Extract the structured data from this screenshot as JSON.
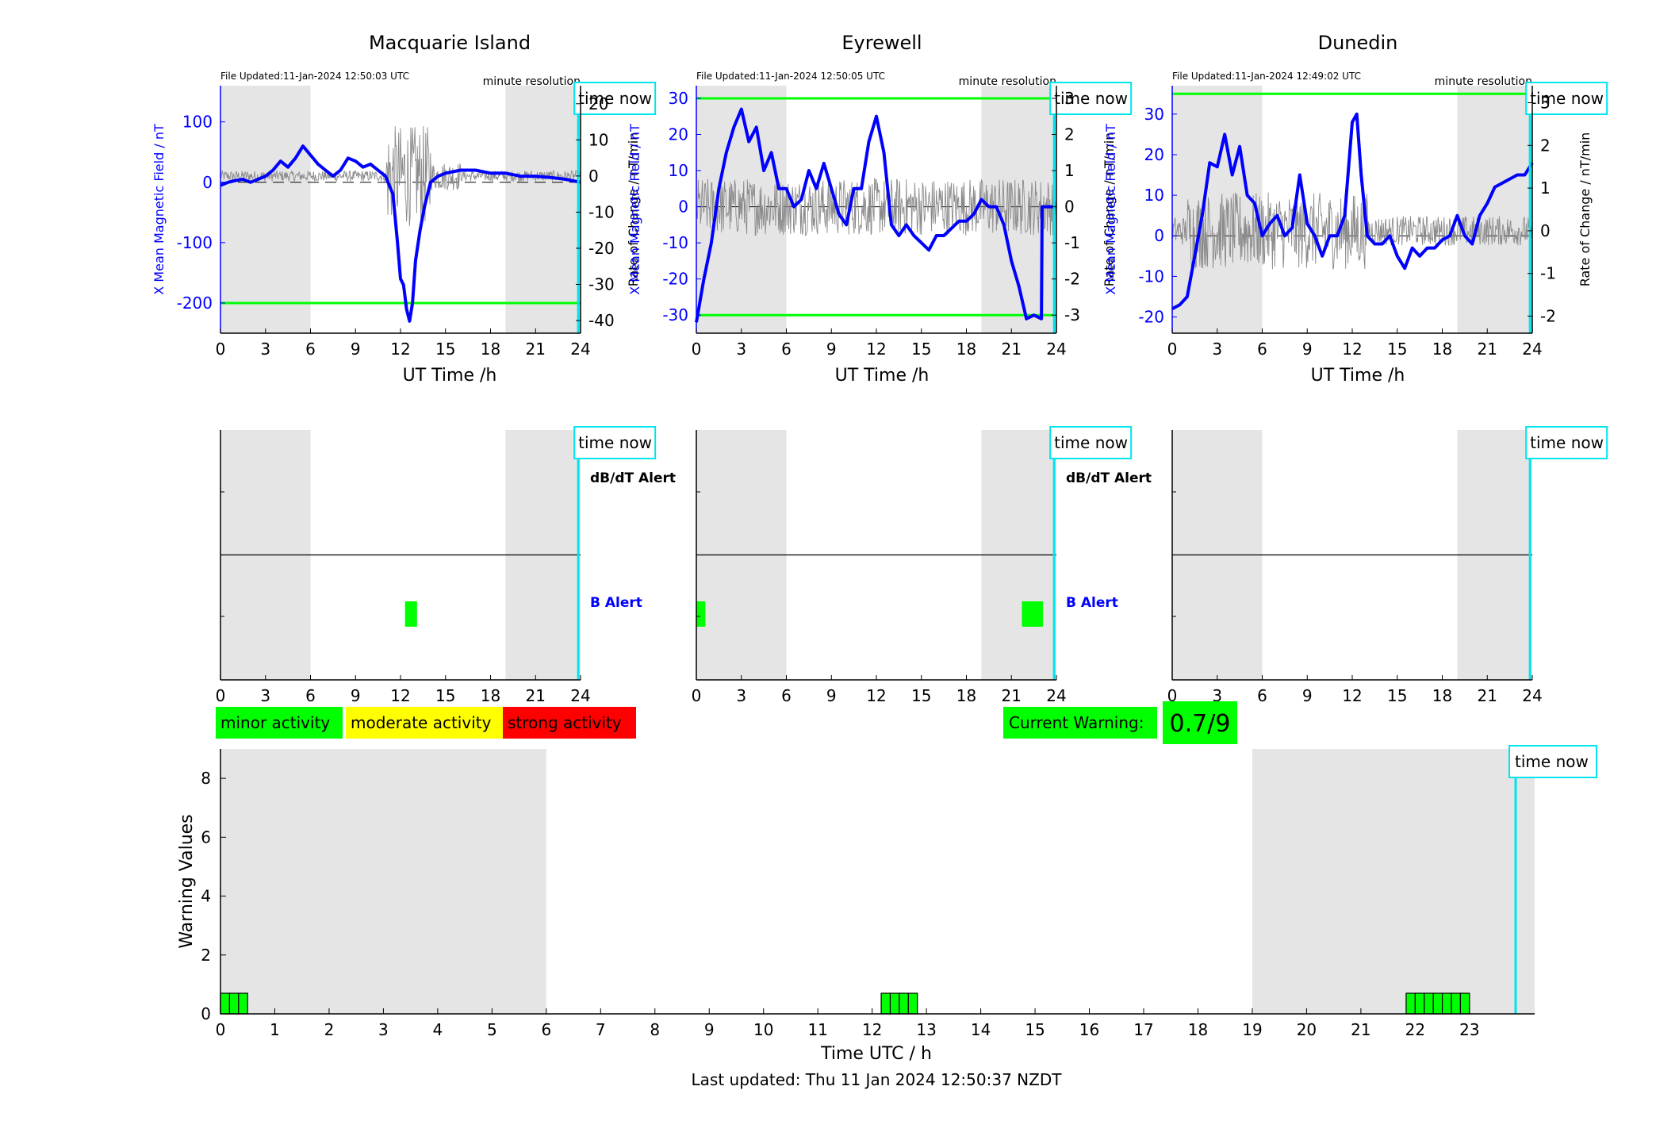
{
  "stations": [
    {
      "title": "Macquarie Island",
      "file_updated": "File Updated:11-Jan-2024 12:50:03 UTC",
      "resolution_label": "minute resolution",
      "time_now_label": "time now",
      "left_axis_label": "X Mean Magnetic Field / nT",
      "right_axis_label": "Rate of Change / nT/min",
      "dbdt_alert_label": "dB/dT Alert",
      "b_alert_label": "B Alert"
    },
    {
      "title": "Eyrewell",
      "file_updated": "File Updated:11-Jan-2024 12:50:05 UTC",
      "resolution_label": "minute resolution",
      "time_now_label": "time now",
      "left_axis_label": "X Mean Magnetic Field / nT",
      "right_axis_label": "Rate of Change / nT/min",
      "dbdt_alert_label": "dB/dT Alert",
      "b_alert_label": "B Alert"
    },
    {
      "title": "Dunedin",
      "file_updated": "File Updated:11-Jan-2024 12:49:02 UTC",
      "resolution_label": "minute resolution",
      "time_now_label": "time now",
      "left_axis_label": "X Mean Magnetic Field / nT",
      "right_axis_label": "Rate of Change / nT/min",
      "dbdt_alert_label": "",
      "b_alert_label": ""
    }
  ],
  "legend": {
    "minor": "minor activity",
    "moderate": "moderate activity",
    "strong": "strong activity"
  },
  "current_warning": {
    "label": "Current Warning:",
    "value": "0.7/9"
  },
  "bottom": {
    "ylabel": "Warning Values",
    "xlabel": "Time UTC / h",
    "time_now_label": "time now"
  },
  "last_updated": "Last updated: Thu 11 Jan 2024 12:50:37 NZDT",
  "colors": {
    "field": "#0000ff",
    "threshold": "#00ff00",
    "time_now": "#00e5ee",
    "night": "#e5e5e5",
    "minor": "#00ff00",
    "moderate": "#ffff00",
    "strong": "#ff0000"
  },
  "chart_data": [
    {
      "type": "line",
      "station": "Macquarie Island",
      "xlabel": "UT Time /h",
      "ylabel": "X Mean Magnetic Field / nT",
      "y2label": "Rate of Change / nT/min",
      "xlim": [
        0,
        24
      ],
      "xticks": [
        0,
        3,
        6,
        9,
        12,
        15,
        18,
        21,
        24
      ],
      "ylim": [
        -250,
        160
      ],
      "yticks": [
        -200,
        -100,
        0,
        100
      ],
      "y2lim": [
        -43.5,
        25
      ],
      "y2ticks": [
        -40,
        -30,
        -20,
        -10,
        0,
        10,
        20
      ],
      "night_shading": [
        [
          0,
          6
        ],
        [
          19,
          24
        ]
      ],
      "thresholds": [
        -200
      ],
      "time_now": 23.85,
      "series": [
        {
          "name": "X Mean Magnetic Field",
          "x": [
            0,
            0.5,
            1,
            1.5,
            2,
            2.5,
            3,
            3.5,
            4,
            4.5,
            5,
            5.5,
            6,
            6.5,
            7,
            7.5,
            8,
            8.5,
            9,
            9.5,
            10,
            10.5,
            11,
            11.5,
            11.8,
            12,
            12.2,
            12.4,
            12.6,
            12.8,
            13,
            13.3,
            13.6,
            14,
            14.5,
            15,
            16,
            17,
            18,
            19,
            20,
            21,
            22,
            23,
            24
          ],
          "y": [
            -5,
            0,
            3,
            5,
            0,
            5,
            10,
            20,
            35,
            25,
            40,
            60,
            45,
            30,
            20,
            10,
            20,
            40,
            35,
            25,
            30,
            20,
            10,
            -20,
            -100,
            -160,
            -170,
            -210,
            -230,
            -200,
            -130,
            -80,
            -40,
            0,
            10,
            15,
            20,
            20,
            15,
            15,
            10,
            10,
            8,
            5,
            0
          ]
        }
      ],
      "alerts": {
        "dbdt": [],
        "b": [
          [
            12.3,
            13.1
          ]
        ]
      }
    },
    {
      "type": "line",
      "station": "Eyrewell",
      "xlabel": "UT Time /h",
      "ylabel": "X Mean Magnetic Field / nT",
      "y2label": "Rate of Change / nT/min",
      "xlim": [
        0,
        24
      ],
      "xticks": [
        0,
        3,
        6,
        9,
        12,
        15,
        18,
        21,
        24
      ],
      "ylim": [
        -35,
        33.5
      ],
      "yticks": [
        -30,
        -20,
        -10,
        0,
        10,
        20,
        30
      ],
      "y2lim": [
        -3.5,
        3.35
      ],
      "y2ticks": [
        -3,
        -2,
        -1,
        0,
        1,
        2,
        3
      ],
      "night_shading": [
        [
          0,
          6
        ],
        [
          19,
          24
        ]
      ],
      "thresholds": [
        30,
        -30
      ],
      "time_now": 23.85,
      "series": [
        {
          "name": "X Mean Magnetic Field",
          "x": [
            0,
            0.5,
            1,
            1.5,
            2,
            2.5,
            3,
            3.5,
            4,
            4.5,
            5,
            5.5,
            6,
            6.5,
            7,
            7.5,
            8,
            8.5,
            9,
            9.5,
            10,
            10.5,
            11,
            11.5,
            12,
            12.5,
            13,
            13.5,
            14,
            14.5,
            15,
            15.5,
            16,
            16.5,
            17,
            17.5,
            18,
            18.5,
            19,
            19.5,
            20,
            20.5,
            21,
            21.5,
            22,
            22.5,
            23,
            23.05,
            23.1,
            24
          ],
          "y": [
            -32,
            -20,
            -10,
            5,
            15,
            22,
            27,
            18,
            22,
            10,
            15,
            5,
            5,
            0,
            2,
            10,
            5,
            12,
            5,
            -2,
            -5,
            5,
            5,
            18,
            25,
            15,
            -5,
            -8,
            -5,
            -8,
            -10,
            -12,
            -8,
            -8,
            -6,
            -4,
            -4,
            -2,
            2,
            0,
            0,
            -5,
            -15,
            -22,
            -31,
            -30,
            -31,
            0,
            0,
            0
          ]
        }
      ],
      "alerts": {
        "dbdt": [],
        "b": [
          [
            0,
            0.6
          ],
          [
            21.7,
            23.1
          ]
        ]
      }
    },
    {
      "type": "line",
      "station": "Dunedin",
      "xlabel": "UT Time /h",
      "ylabel": "X Mean Magnetic Field / nT",
      "y2label": "Rate of Change / nT/min",
      "xlim": [
        0,
        24
      ],
      "xticks": [
        0,
        3,
        6,
        9,
        12,
        15,
        18,
        21,
        24
      ],
      "ylim": [
        -24,
        37
      ],
      "yticks": [
        -20,
        -10,
        0,
        10,
        20,
        30
      ],
      "y2lim": [
        -2.4,
        3.4
      ],
      "y2ticks": [
        -2,
        -1,
        0,
        1,
        2,
        3
      ],
      "night_shading": [
        [
          0,
          6
        ],
        [
          19,
          24
        ]
      ],
      "thresholds": [
        35
      ],
      "time_now": 23.85,
      "series": [
        {
          "name": "X Mean Magnetic Field",
          "x": [
            0,
            0.5,
            1,
            1.5,
            2,
            2.5,
            3,
            3.5,
            4,
            4.5,
            5,
            5.5,
            6,
            6.5,
            7,
            7.5,
            8,
            8.5,
            9,
            9.5,
            10,
            10.5,
            11,
            11.5,
            12,
            12.3,
            12.6,
            13,
            13.5,
            14,
            14.5,
            15,
            15.5,
            16,
            16.5,
            17,
            17.5,
            18,
            18.5,
            19,
            19.5,
            20,
            20.5,
            21,
            21.5,
            22,
            22.5,
            23,
            23.5,
            24
          ],
          "y": [
            -18,
            -17,
            -15,
            -5,
            5,
            18,
            17,
            25,
            15,
            22,
            10,
            8,
            0,
            3,
            5,
            0,
            2,
            15,
            3,
            0,
            -5,
            0,
            0,
            5,
            28,
            30,
            15,
            0,
            -2,
            -2,
            0,
            -5,
            -8,
            -3,
            -5,
            -3,
            -3,
            -1,
            0,
            5,
            0,
            -2,
            5,
            8,
            12,
            13,
            14,
            15,
            15,
            18
          ]
        }
      ],
      "alerts": {
        "dbdt": [],
        "b": []
      }
    },
    {
      "type": "bar",
      "title": "",
      "xlabel": "Time UTC / h",
      "ylabel": "Warning Values",
      "xlim": [
        0,
        24.2
      ],
      "xticks": [
        0,
        1,
        2,
        3,
        4,
        5,
        6,
        7,
        8,
        9,
        10,
        11,
        12,
        13,
        14,
        15,
        16,
        17,
        18,
        19,
        20,
        21,
        22,
        23
      ],
      "ylim": [
        0,
        9
      ],
      "yticks": [
        0,
        2,
        4,
        6,
        8
      ],
      "night_shading": [
        [
          0,
          6
        ],
        [
          19,
          24.2
        ]
      ],
      "time_now": 23.85,
      "bar_width_h": 0.1667,
      "bars": [
        {
          "x": 0.0,
          "value": 0.7
        },
        {
          "x": 0.1667,
          "value": 0.7
        },
        {
          "x": 0.3333,
          "value": 0.7
        },
        {
          "x": 12.1667,
          "value": 0.7
        },
        {
          "x": 12.3333,
          "value": 0.7
        },
        {
          "x": 12.5,
          "value": 0.7
        },
        {
          "x": 12.6667,
          "value": 0.7
        },
        {
          "x": 21.8333,
          "value": 0.7
        },
        {
          "x": 22.0,
          "value": 0.7
        },
        {
          "x": 22.1667,
          "value": 0.7
        },
        {
          "x": 22.3333,
          "value": 0.7
        },
        {
          "x": 22.5,
          "value": 0.7
        },
        {
          "x": 22.6667,
          "value": 0.7
        },
        {
          "x": 22.8333,
          "value": 0.7
        }
      ]
    }
  ]
}
